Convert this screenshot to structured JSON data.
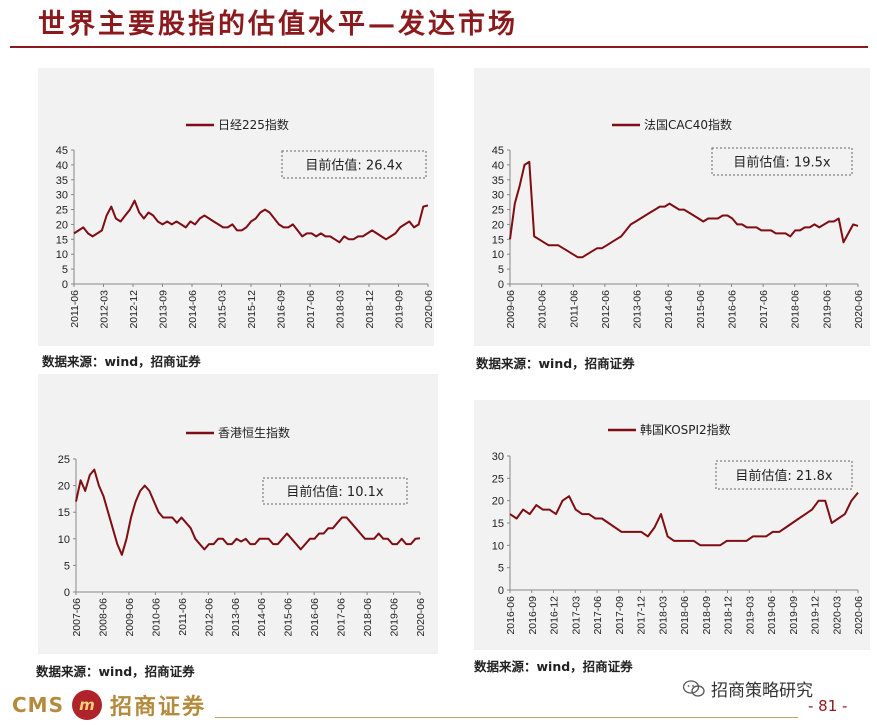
{
  "header": {
    "title": "世界主要股指的估值水平—发达市场"
  },
  "source_text": "数据来源：wind，招商证券",
  "footer": {
    "cms": "CMS",
    "logo_glyph": "m",
    "company": "招商证券",
    "wechat": "招商策略研究",
    "page": "- 81 -"
  },
  "colors": {
    "line": "#7f0d12",
    "panel": "#f2f2f2",
    "accent": "#8c1a1c"
  },
  "chart_data": [
    {
      "type": "line",
      "legend": "日经225指数",
      "annotation": "目前估值:  26.4x",
      "ylim": [
        0,
        45
      ],
      "yticks": [
        0,
        5,
        10,
        15,
        20,
        25,
        30,
        35,
        40,
        45
      ],
      "xticks": [
        "2011-06",
        "2012-03",
        "2012-12",
        "2013-09",
        "2014-06",
        "2015-03",
        "2015-12",
        "2016-09",
        "2017-06",
        "2018-03",
        "2018-12",
        "2019-09",
        "2020-06"
      ],
      "series": [
        {
          "values": [
            17,
            18,
            19,
            17,
            16,
            17,
            18,
            23,
            26,
            22,
            21,
            23,
            25,
            28,
            24,
            22,
            24,
            23,
            21,
            20,
            21,
            20,
            21,
            20,
            19,
            21,
            20,
            22,
            23,
            22,
            21,
            20,
            19,
            19,
            20,
            18,
            18,
            19,
            21,
            22,
            24,
            25,
            24,
            22,
            20,
            19,
            19,
            20,
            18,
            16,
            17,
            17,
            16,
            17,
            16,
            16,
            15,
            14,
            16,
            15,
            15,
            16,
            16,
            17,
            18,
            17,
            16,
            15,
            16,
            17,
            19,
            20,
            21,
            19,
            20,
            26,
            26.4
          ]
        }
      ]
    },
    {
      "type": "line",
      "legend": "法国CAC40指数",
      "annotation": "目前估值:  19.5x",
      "ylim": [
        0,
        45
      ],
      "yticks": [
        0,
        5,
        10,
        15,
        20,
        25,
        30,
        35,
        40,
        45
      ],
      "xticks": [
        "2009-06",
        "2010-06",
        "2011-06",
        "2012-06",
        "2013-06",
        "2014-06",
        "2015-06",
        "2016-06",
        "2017-06",
        "2018-06",
        "2019-06",
        "2020-06"
      ],
      "series": [
        {
          "values": [
            15,
            27,
            33,
            40,
            41,
            16,
            15,
            14,
            13,
            13,
            13,
            12,
            11,
            10,
            9,
            9,
            10,
            11,
            12,
            12,
            13,
            14,
            15,
            16,
            18,
            20,
            21,
            22,
            23,
            24,
            25,
            26,
            26,
            27,
            26,
            25,
            25,
            24,
            23,
            22,
            21,
            22,
            22,
            22,
            23,
            23,
            22,
            20,
            20,
            19,
            19,
            19,
            18,
            18,
            18,
            17,
            17,
            17,
            16,
            18,
            18,
            19,
            19,
            20,
            19,
            20,
            21,
            21,
            22,
            14,
            17,
            20,
            19.5
          ]
        }
      ]
    },
    {
      "type": "line",
      "legend": "香港恒生指数",
      "annotation": "目前估值:  10.1x",
      "ylim": [
        0,
        25
      ],
      "yticks": [
        0,
        5,
        10,
        15,
        20,
        25
      ],
      "xticks": [
        "2007-06",
        "2008-06",
        "2009-06",
        "2010-06",
        "2011-06",
        "2012-06",
        "2013-06",
        "2014-06",
        "2015-06",
        "2016-06",
        "2017-06",
        "2018-06",
        "2019-06",
        "2020-06"
      ],
      "series": [
        {
          "values": [
            17,
            21,
            19,
            22,
            23,
            20,
            18,
            15,
            12,
            9,
            7,
            10,
            14,
            17,
            19,
            20,
            19,
            17,
            15,
            14,
            14,
            14,
            13,
            14,
            13,
            12,
            10,
            9,
            8,
            9,
            9,
            10,
            10,
            9,
            9,
            10,
            9.5,
            10,
            9,
            9,
            10,
            10,
            10,
            9,
            9,
            10,
            11,
            10,
            9,
            8,
            9,
            10,
            10,
            11,
            11,
            12,
            12,
            13,
            14,
            14,
            13,
            12,
            11,
            10,
            10,
            10,
            11,
            10,
            10,
            9,
            9,
            10,
            9,
            9,
            10,
            10.1
          ]
        }
      ]
    },
    {
      "type": "line",
      "legend": "韩国KOSPI2指数",
      "annotation": "目前估值:  21.8x",
      "ylim": [
        0,
        30
      ],
      "yticks": [
        0,
        5,
        10,
        15,
        20,
        25,
        30
      ],
      "xticks": [
        "2016-06",
        "2016-09",
        "2016-12",
        "2017-03",
        "2017-06",
        "2017-09",
        "2017-12",
        "2018-03",
        "2018-06",
        "2018-09",
        "2018-12",
        "2019-03",
        "2019-06",
        "2019-09",
        "2019-12",
        "2020-03",
        "2020-06"
      ],
      "series": [
        {
          "values": [
            17,
            16,
            18,
            17,
            19,
            18,
            18,
            17,
            20,
            21,
            18,
            17,
            17,
            16,
            16,
            15,
            14,
            13,
            13,
            13,
            13,
            12,
            14,
            17,
            12,
            11,
            11,
            11,
            11,
            10,
            10,
            10,
            10,
            11,
            11,
            11,
            11,
            12,
            12,
            12,
            13,
            13,
            14,
            15,
            16,
            17,
            18,
            20,
            20,
            15,
            16,
            17,
            20,
            21.8
          ]
        }
      ]
    }
  ]
}
